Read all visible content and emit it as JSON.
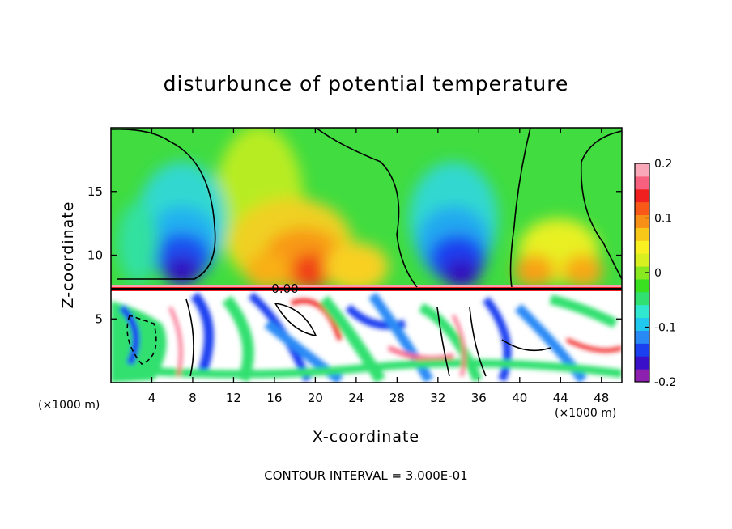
{
  "chart_data": {
    "type": "heatmap",
    "title": "disturbunce of potential temperature",
    "xlabel": "X-coordinate",
    "ylabel": "Z-coordinate",
    "x_unit_left": "(×1000 m)",
    "x_unit_right": "(×1000 m)",
    "xlim": [
      0,
      50
    ],
    "ylim": [
      0,
      20
    ],
    "x_ticks": [
      4,
      8,
      12,
      16,
      20,
      24,
      28,
      32,
      36,
      40,
      44,
      48
    ],
    "x_tick_labels": [
      "4",
      "8",
      "12",
      "16",
      "20",
      "24",
      "28",
      "32",
      "36",
      "40",
      "44",
      "48"
    ],
    "y_ticks": [
      5,
      10,
      15
    ],
    "y_tick_labels": [
      "5",
      "10",
      "15"
    ],
    "colorbar": {
      "range": [
        -0.2,
        0.2
      ],
      "ticks": [
        -0.2,
        -0.1,
        0,
        0.1,
        0.2
      ],
      "tick_labels": [
        "-0.2",
        "-0.1",
        "0",
        "0.1",
        "0.2"
      ],
      "colors": [
        "#8e20b0",
        "#3a10c8",
        "#1a40f0",
        "#2a8af5",
        "#20c8f0",
        "#30e8d0",
        "#30e070",
        "#38e020",
        "#8ae820",
        "#d8f020",
        "#f8f020",
        "#f8c818",
        "#f89018",
        "#f85818",
        "#f02020",
        "#f86080",
        "#f8a8b8"
      ]
    },
    "contour_label": "0.00",
    "contour_interval_text": "CONTOUR INTERVAL = 3.000E-01"
  }
}
